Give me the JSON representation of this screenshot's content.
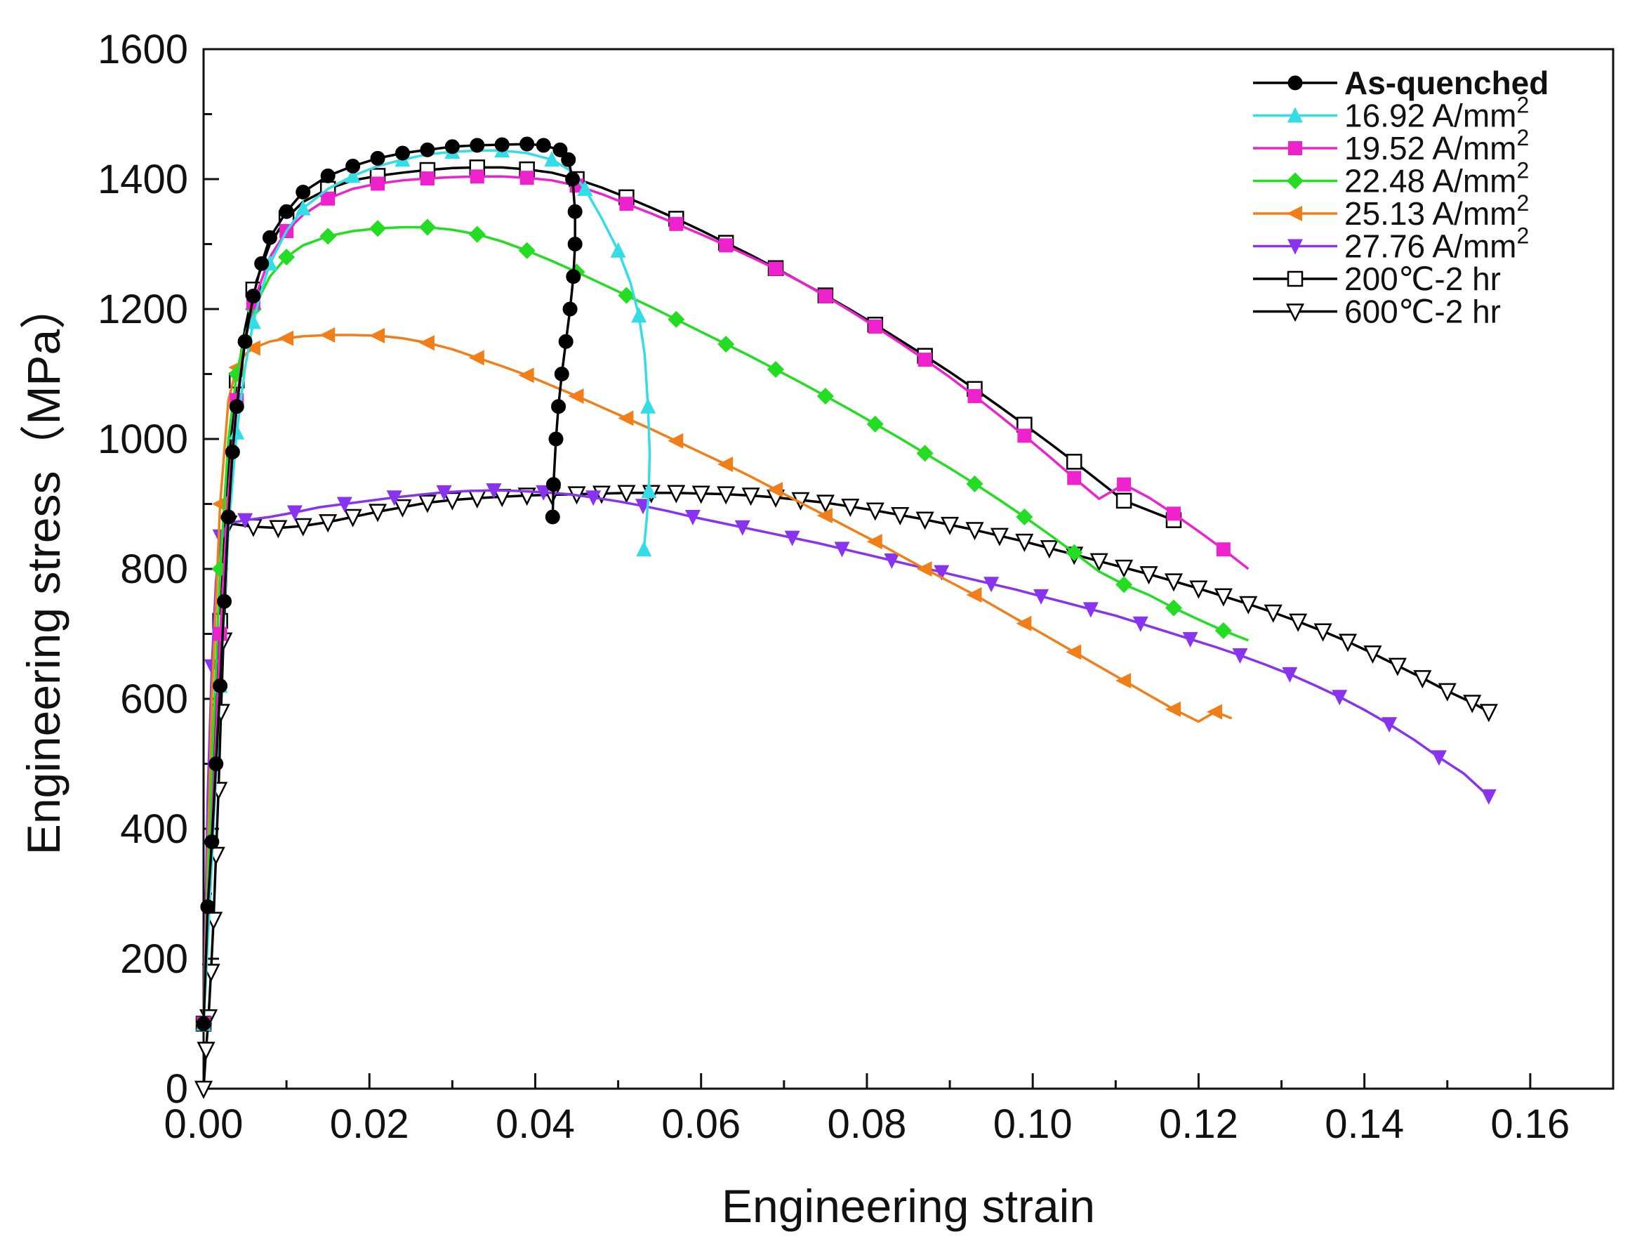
{
  "chart_data": {
    "type": "line",
    "title": "",
    "xlabel": "Engineering strain",
    "ylabel": "Engineering stress（MPa）",
    "xlim": [
      0,
      0.17
    ],
    "ylim": [
      0,
      1600
    ],
    "xticks": [
      0.0,
      0.02,
      0.04,
      0.06,
      0.08,
      0.1,
      0.12,
      0.14,
      0.16
    ],
    "xtick_labels": [
      "0.00",
      "0.02",
      "0.04",
      "0.06",
      "0.08",
      "0.10",
      "0.12",
      "0.14",
      "0.16"
    ],
    "yticks": [
      0,
      200,
      400,
      600,
      800,
      1000,
      1200,
      1400,
      1600
    ],
    "ytick_labels": [
      "0",
      "200",
      "400",
      "600",
      "800",
      "1000",
      "1200",
      "1400",
      "1600"
    ],
    "grid": false,
    "legend_position": "top-right",
    "series": [
      {
        "name": "As-quenched",
        "label_main": "As-quenched",
        "label_sup": "",
        "bold": true,
        "color": "#000000",
        "marker": "circle-filled",
        "x": [
          0.0,
          0.0005,
          0.001,
          0.0015,
          0.002,
          0.0025,
          0.003,
          0.0035,
          0.004,
          0.005,
          0.006,
          0.007,
          0.008,
          0.01,
          0.012,
          0.015,
          0.018,
          0.021,
          0.024,
          0.027,
          0.03,
          0.033,
          0.036,
          0.039,
          0.041,
          0.043,
          0.044,
          0.0445,
          0.0448,
          0.0448,
          0.0446,
          0.0442,
          0.0437,
          0.0432,
          0.0428,
          0.0425,
          0.0422,
          0.0421
        ],
        "y": [
          100,
          280,
          380,
          500,
          620,
          750,
          880,
          980,
          1050,
          1150,
          1220,
          1270,
          1310,
          1350,
          1380,
          1405,
          1420,
          1432,
          1440,
          1445,
          1450,
          1452,
          1453,
          1454,
          1452,
          1445,
          1430,
          1400,
          1350,
          1300,
          1250,
          1200,
          1150,
          1100,
          1050,
          1000,
          930,
          880
        ],
        "marker_every": 1
      },
      {
        "name": "16.92 A/mm2",
        "label_main": "16.92 A/mm",
        "label_sup": "2",
        "bold": false,
        "color": "#33dde6",
        "marker": "triangle-up",
        "x": [
          0.0,
          0.001,
          0.002,
          0.003,
          0.004,
          0.005,
          0.006,
          0.007,
          0.008,
          0.01,
          0.012,
          0.015,
          0.018,
          0.021,
          0.024,
          0.027,
          0.03,
          0.033,
          0.036,
          0.039,
          0.042,
          0.044,
          0.046,
          0.048,
          0.05,
          0.0515,
          0.0525,
          0.0532,
          0.0536,
          0.0538,
          0.0537,
          0.0534,
          0.0531
        ],
        "y": [
          100,
          350,
          620,
          860,
          1010,
          1110,
          1180,
          1230,
          1270,
          1320,
          1355,
          1385,
          1405,
          1420,
          1430,
          1438,
          1442,
          1444,
          1444,
          1440,
          1430,
          1415,
          1385,
          1340,
          1290,
          1240,
          1190,
          1130,
          1050,
          980,
          920,
          870,
          830
        ],
        "marker_every": 2
      },
      {
        "name": "19.52 A/mm2",
        "label_main": "19.52 A/mm",
        "label_sup": "2",
        "bold": false,
        "color": "#ee22cc",
        "marker": "square-filled",
        "x": [
          0.0,
          0.001,
          0.002,
          0.003,
          0.004,
          0.005,
          0.006,
          0.008,
          0.01,
          0.012,
          0.015,
          0.018,
          0.021,
          0.024,
          0.027,
          0.03,
          0.033,
          0.036,
          0.039,
          0.042,
          0.045,
          0.048,
          0.051,
          0.054,
          0.057,
          0.06,
          0.063,
          0.066,
          0.069,
          0.072,
          0.075,
          0.078,
          0.081,
          0.084,
          0.087,
          0.09,
          0.093,
          0.096,
          0.099,
          0.102,
          0.105,
          0.108,
          0.111,
          0.114,
          0.117,
          0.12,
          0.123,
          0.126
        ],
        "y": [
          100,
          400,
          700,
          920,
          1060,
          1150,
          1210,
          1280,
          1320,
          1345,
          1370,
          1385,
          1393,
          1398,
          1401,
          1403,
          1404,
          1404,
          1402,
          1398,
          1390,
          1377,
          1362,
          1347,
          1331,
          1315,
          1298,
          1280,
          1262,
          1242,
          1220,
          1197,
          1173,
          1148,
          1122,
          1095,
          1066,
          1036,
          1005,
          973,
          940,
          908,
          930,
          910,
          885,
          858,
          830,
          800
        ],
        "marker_every": 2
      },
      {
        "name": "22.48 A/mm2",
        "label_main": "22.48 A/mm",
        "label_sup": "2",
        "bold": false,
        "color": "#22dd22",
        "marker": "diamond-filled",
        "x": [
          0.0,
          0.001,
          0.002,
          0.003,
          0.004,
          0.005,
          0.006,
          0.008,
          0.01,
          0.012,
          0.015,
          0.018,
          0.021,
          0.024,
          0.027,
          0.03,
          0.033,
          0.036,
          0.039,
          0.042,
          0.045,
          0.048,
          0.051,
          0.054,
          0.057,
          0.06,
          0.063,
          0.066,
          0.069,
          0.072,
          0.075,
          0.078,
          0.081,
          0.084,
          0.087,
          0.09,
          0.093,
          0.096,
          0.099,
          0.102,
          0.105,
          0.108,
          0.111,
          0.114,
          0.117,
          0.12,
          0.123,
          0.126
        ],
        "y": [
          100,
          500,
          800,
          1000,
          1100,
          1160,
          1200,
          1250,
          1280,
          1298,
          1312,
          1320,
          1324,
          1326,
          1326,
          1322,
          1315,
          1304,
          1290,
          1274,
          1257,
          1239,
          1221,
          1203,
          1184,
          1165,
          1146,
          1127,
          1107,
          1087,
          1066,
          1045,
          1023,
          1001,
          978,
          955,
          931,
          906,
          880,
          853,
          825,
          796,
          776,
          760,
          740,
          722,
          705,
          690
        ],
        "marker_every": 2
      },
      {
        "name": "25.13 A/mm2",
        "label_main": "25.13 A/mm",
        "label_sup": "2",
        "bold": false,
        "color": "#f07f1a",
        "marker": "triangle-left",
        "x": [
          0.0,
          0.001,
          0.002,
          0.003,
          0.004,
          0.005,
          0.006,
          0.008,
          0.01,
          0.012,
          0.015,
          0.018,
          0.021,
          0.024,
          0.027,
          0.03,
          0.033,
          0.036,
          0.039,
          0.042,
          0.045,
          0.048,
          0.051,
          0.054,
          0.057,
          0.06,
          0.063,
          0.066,
          0.069,
          0.072,
          0.075,
          0.078,
          0.081,
          0.084,
          0.087,
          0.09,
          0.093,
          0.096,
          0.099,
          0.102,
          0.105,
          0.108,
          0.111,
          0.114,
          0.117,
          0.12,
          0.122,
          0.124
        ],
        "y": [
          100,
          600,
          900,
          1060,
          1110,
          1130,
          1140,
          1150,
          1155,
          1158,
          1160,
          1160,
          1159,
          1155,
          1148,
          1138,
          1125,
          1112,
          1098,
          1082,
          1066,
          1049,
          1032,
          1015,
          997,
          979,
          961,
          942,
          922,
          902,
          882,
          862,
          842,
          821,
          800,
          780,
          760,
          738,
          716,
          694,
          672,
          650,
          628,
          606,
          584,
          565,
          580,
          570
        ],
        "marker_every": 2
      },
      {
        "name": "27.76 A/mm2",
        "label_main": "27.76 A/mm",
        "label_sup": "2",
        "bold": false,
        "color": "#8833ee",
        "marker": "triangle-down",
        "x": [
          0.0,
          0.0005,
          0.001,
          0.0015,
          0.002,
          0.003,
          0.005,
          0.008,
          0.011,
          0.014,
          0.017,
          0.02,
          0.023,
          0.026,
          0.029,
          0.032,
          0.035,
          0.038,
          0.041,
          0.044,
          0.047,
          0.05,
          0.053,
          0.056,
          0.059,
          0.062,
          0.065,
          0.068,
          0.071,
          0.074,
          0.077,
          0.08,
          0.083,
          0.086,
          0.089,
          0.092,
          0.095,
          0.098,
          0.101,
          0.104,
          0.107,
          0.11,
          0.113,
          0.116,
          0.119,
          0.122,
          0.125,
          0.128,
          0.131,
          0.134,
          0.137,
          0.14,
          0.143,
          0.146,
          0.149,
          0.152,
          0.155
        ],
        "y": [
          100,
          450,
          650,
          780,
          850,
          870,
          875,
          880,
          887,
          895,
          900,
          905,
          910,
          914,
          918,
          920,
          921,
          920,
          918,
          915,
          910,
          904,
          897,
          889,
          880,
          872,
          864,
          856,
          848,
          840,
          831,
          822,
          813,
          804,
          795,
          786,
          777,
          768,
          758,
          748,
          738,
          728,
          716,
          704,
          692,
          680,
          667,
          653,
          638,
          621,
          603,
          583,
          561,
          537,
          510,
          485,
          450
        ],
        "marker_every": 2
      },
      {
        "name": "200℃-2 hr",
        "label_main": "200℃-2 hr",
        "label_sup": "",
        "bold": false,
        "color": "#000000",
        "marker": "square-open",
        "x": [
          0.0,
          0.001,
          0.002,
          0.003,
          0.004,
          0.005,
          0.006,
          0.008,
          0.01,
          0.012,
          0.015,
          0.018,
          0.021,
          0.024,
          0.027,
          0.03,
          0.033,
          0.036,
          0.039,
          0.042,
          0.045,
          0.048,
          0.051,
          0.054,
          0.057,
          0.06,
          0.063,
          0.066,
          0.069,
          0.072,
          0.075,
          0.078,
          0.081,
          0.084,
          0.087,
          0.09,
          0.093,
          0.096,
          0.099,
          0.102,
          0.105,
          0.108,
          0.111,
          0.114,
          0.117
        ],
        "y": [
          100,
          420,
          720,
          960,
          1090,
          1170,
          1230,
          1300,
          1340,
          1365,
          1385,
          1398,
          1405,
          1410,
          1414,
          1417,
          1418,
          1418,
          1415,
          1410,
          1400,
          1387,
          1372,
          1356,
          1339,
          1321,
          1302,
          1283,
          1263,
          1242,
          1221,
          1199,
          1176,
          1152,
          1128,
          1103,
          1077,
          1050,
          1022,
          994,
          965,
          935,
          905,
          890,
          875
        ],
        "marker_every": 2
      },
      {
        "name": "600℃-2 hr",
        "label_main": "600℃-2 hr",
        "label_sup": "",
        "bold": false,
        "color": "#000000",
        "marker": "triangle-down-open",
        "x": [
          0.0,
          0.0003,
          0.0006,
          0.0009,
          0.0012,
          0.0015,
          0.0018,
          0.0021,
          0.0024,
          0.003,
          0.006,
          0.009,
          0.012,
          0.015,
          0.018,
          0.021,
          0.024,
          0.027,
          0.03,
          0.033,
          0.036,
          0.039,
          0.042,
          0.045,
          0.048,
          0.051,
          0.054,
          0.057,
          0.06,
          0.063,
          0.066,
          0.069,
          0.072,
          0.075,
          0.078,
          0.081,
          0.084,
          0.087,
          0.09,
          0.093,
          0.096,
          0.099,
          0.102,
          0.105,
          0.108,
          0.111,
          0.114,
          0.117,
          0.12,
          0.123,
          0.126,
          0.129,
          0.132,
          0.135,
          0.138,
          0.141,
          0.144,
          0.147,
          0.15,
          0.153,
          0.155
        ],
        "y": [
          0,
          60,
          110,
          180,
          260,
          360,
          460,
          580,
          690,
          870,
          865,
          863,
          866,
          872,
          880,
          888,
          895,
          902,
          906,
          909,
          911,
          913,
          914,
          915,
          916,
          917,
          917,
          917,
          916,
          915,
          913,
          910,
          906,
          902,
          896,
          890,
          883,
          876,
          868,
          860,
          851,
          842,
          832,
          822,
          812,
          802,
          792,
          781,
          770,
          758,
          746,
          733,
          719,
          704,
          688,
          670,
          651,
          632,
          612,
          594,
          580
        ],
        "marker_every": 1
      }
    ]
  }
}
